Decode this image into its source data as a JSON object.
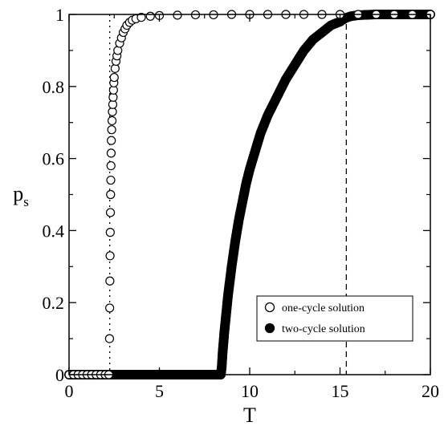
{
  "chart_data": {
    "type": "scatter",
    "xlabel": "T",
    "ylabel": "p",
    "ylabel_subscript": "s",
    "xlim": [
      0,
      20
    ],
    "ylim": [
      0,
      1
    ],
    "xticks": [
      0,
      5,
      10,
      15,
      20
    ],
    "xtick_labels": [
      "0",
      "5",
      "10",
      "15",
      "20"
    ],
    "yticks": [
      0,
      0.2,
      0.4,
      0.6,
      0.8,
      1
    ],
    "ytick_labels": [
      "0",
      "0.2",
      "0.4",
      "0.6",
      "0.8",
      "1"
    ],
    "grid": false,
    "legend_position": "bottom-right",
    "series": [
      {
        "name": "one-cycle solution",
        "marker": "open-circle",
        "x": [
          0.0,
          0.25,
          0.5,
          0.75,
          1.0,
          1.25,
          1.5,
          1.75,
          2.0,
          2.2,
          2.24,
          2.25,
          2.26,
          2.27,
          2.28,
          2.29,
          2.3,
          2.31,
          2.32,
          2.33,
          2.34,
          2.36,
          2.38,
          2.4,
          2.42,
          2.44,
          2.46,
          2.48,
          2.5,
          2.55,
          2.6,
          2.65,
          2.7,
          2.8,
          2.9,
          3.0,
          3.1,
          3.2,
          3.35,
          3.5,
          3.7,
          4.0,
          4.5,
          5.0,
          6.0,
          7.0,
          8.0,
          9.0,
          10.0,
          11.0,
          12.0,
          13.0,
          14.0,
          15.0,
          16.0,
          17.0,
          18.0,
          19.0,
          20.0
        ],
        "values": [
          0.0,
          0.0,
          0.0,
          0.0,
          0.0,
          0.0,
          0.0,
          0.0,
          0.0,
          0.0,
          0.1,
          0.185,
          0.26,
          0.33,
          0.395,
          0.45,
          0.5,
          0.54,
          0.58,
          0.615,
          0.65,
          0.68,
          0.705,
          0.73,
          0.75,
          0.77,
          0.79,
          0.81,
          0.825,
          0.85,
          0.87,
          0.885,
          0.9,
          0.92,
          0.935,
          0.95,
          0.96,
          0.97,
          0.978,
          0.984,
          0.988,
          0.992,
          0.995,
          0.997,
          0.998,
          0.999,
          0.999,
          1.0,
          1.0,
          1.0,
          1.0,
          1.0,
          1.0,
          1.0,
          1.0,
          1.0,
          1.0,
          1.0,
          1.0
        ]
      },
      {
        "name": "two-cycle solution",
        "marker": "filled-circle",
        "x": [
          0.0,
          1.0,
          2.0,
          3.0,
          4.0,
          5.0,
          6.0,
          7.0,
          8.0,
          8.4,
          8.45,
          8.5,
          8.6,
          8.7,
          8.8,
          8.9,
          9.0,
          9.2,
          9.4,
          9.6,
          9.8,
          10.0,
          10.3,
          10.6,
          11.0,
          11.5,
          12.0,
          12.5,
          13.0,
          13.5,
          14.0,
          14.5,
          15.0,
          15.3,
          15.6,
          16.0,
          17.0,
          18.0,
          19.0,
          20.0
        ],
        "values": [
          0.0,
          0.0,
          0.0,
          0.0,
          0.0,
          0.0,
          0.0,
          0.0,
          0.0,
          0.0,
          0.02,
          0.06,
          0.12,
          0.17,
          0.22,
          0.26,
          0.3,
          0.37,
          0.43,
          0.48,
          0.53,
          0.57,
          0.62,
          0.67,
          0.72,
          0.77,
          0.82,
          0.86,
          0.9,
          0.93,
          0.95,
          0.97,
          0.98,
          0.99,
          0.995,
          0.998,
          1.0,
          1.0,
          1.0,
          1.0
        ]
      }
    ],
    "vertical_lines": [
      {
        "x": 2.25,
        "style": "dotted"
      },
      {
        "x": 15.35,
        "style": "dashed"
      }
    ],
    "color": "#000000"
  }
}
